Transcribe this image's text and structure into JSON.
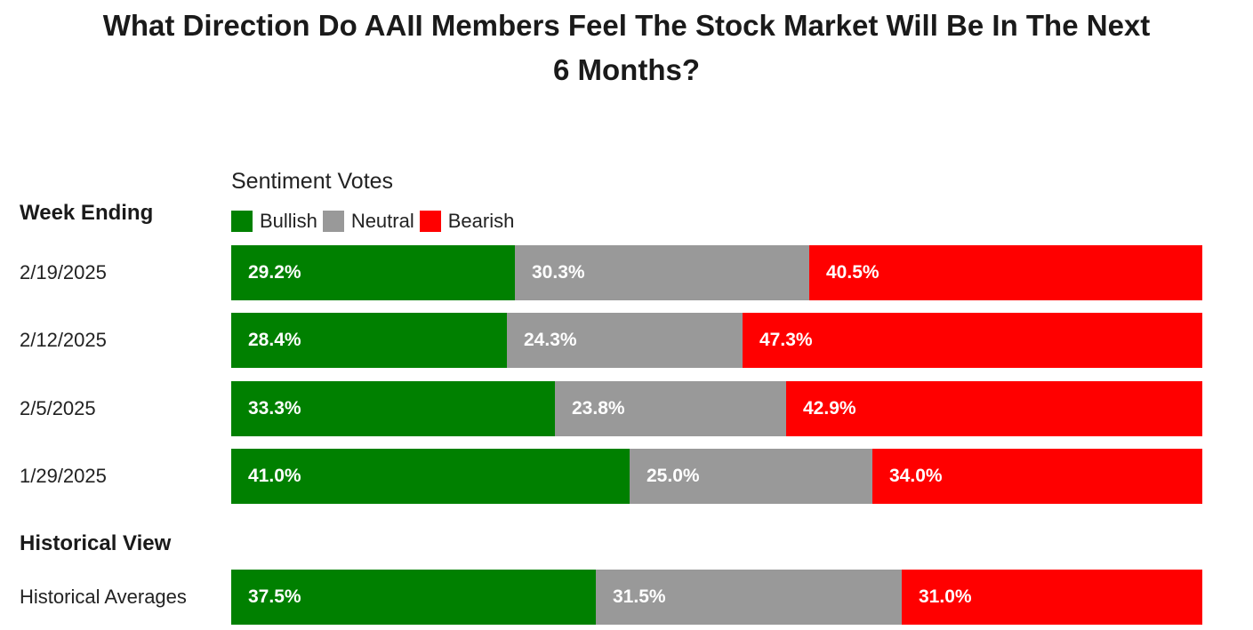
{
  "title_line1": "What Direction Do AAII Members Feel The Stock Market Will Be In The Next",
  "title_line2": "6 Months?",
  "chart_data": {
    "type": "bar",
    "orientation": "horizontal",
    "stacked": true,
    "normalized_to_100": true,
    "title": "What Direction Do AAII Members Feel The Stock Market Will Be In The Next 6 Months?",
    "legend_title": "Sentiment Votes",
    "row_header": "Week Ending",
    "historical_header": "Historical View",
    "series_names": [
      "Bullish",
      "Neutral",
      "Bearish"
    ],
    "colors": {
      "Bullish": "#008000",
      "Neutral": "#999999",
      "Bearish": "#ff0000"
    },
    "categories": [
      "2/19/2025",
      "2/12/2025",
      "2/5/2025",
      "1/29/2025"
    ],
    "series": [
      {
        "name": "Bullish",
        "values": [
          29.2,
          28.4,
          33.3,
          41.0
        ],
        "labels": [
          "29.2%",
          "28.4%",
          "33.3%",
          "41.0%"
        ]
      },
      {
        "name": "Neutral",
        "values": [
          30.3,
          24.3,
          23.8,
          25.0
        ],
        "labels": [
          "30.3%",
          "24.3%",
          "23.8%",
          "25.0%"
        ]
      },
      {
        "name": "Bearish",
        "values": [
          40.5,
          47.3,
          42.9,
          34.0
        ],
        "labels": [
          "40.5%",
          "47.3%",
          "42.9%",
          "34.0%"
        ]
      }
    ],
    "historical": {
      "label": "Historical Averages",
      "values": {
        "Bullish": 37.5,
        "Neutral": 31.5,
        "Bearish": 31.0
      },
      "labels": {
        "Bullish": "37.5%",
        "Neutral": "31.5%",
        "Bearish": "31.0%"
      }
    }
  }
}
